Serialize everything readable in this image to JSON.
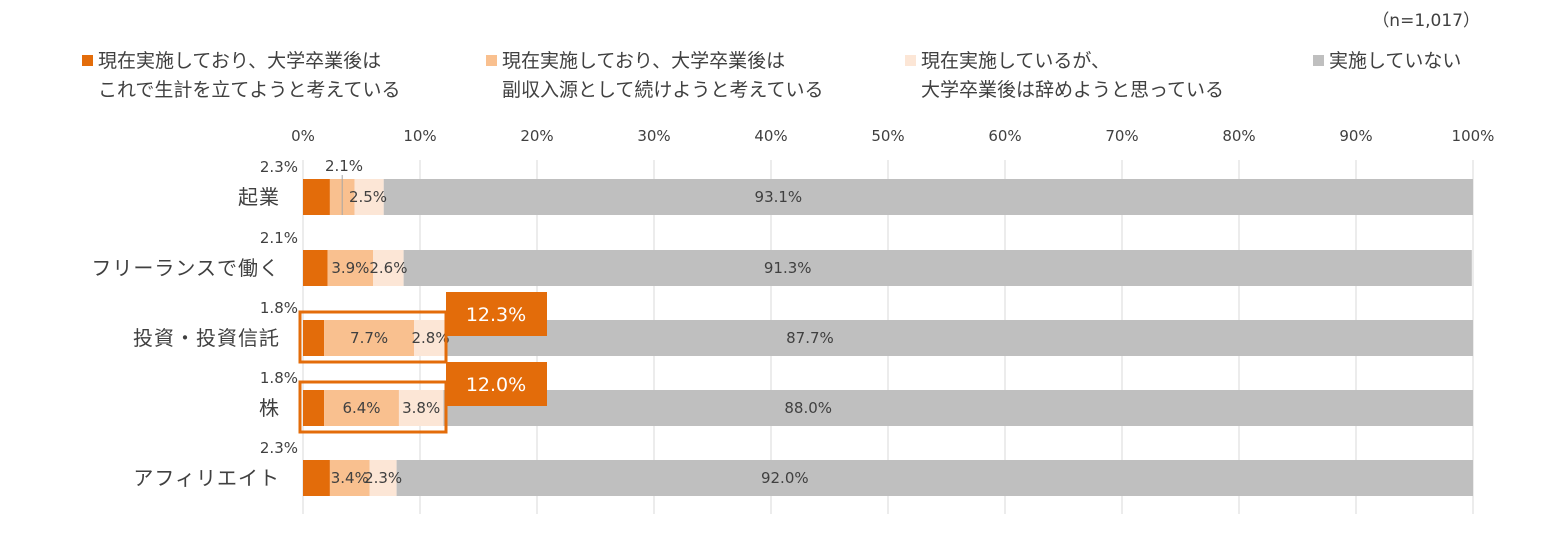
{
  "note": "（n=1,017）",
  "colors": {
    "s1": "#E36C0A",
    "s2": "#F9C08F",
    "s3": "#FCE6D6",
    "s4": "#BFBFBF",
    "grid": "#D9D9D9",
    "highlight": "#E36C0A",
    "text": "#404040"
  },
  "legend": [
    {
      "lines": [
        "現在実施しており、大学卒業後は",
        "これで生計を立てようと考えている"
      ]
    },
    {
      "lines": [
        "現在実施しており、大学卒業後は",
        "副収入源として続けようと考えている"
      ]
    },
    {
      "lines": [
        "現在実施しているが、",
        "大学卒業後は辞めようと思っている"
      ]
    },
    {
      "lines": [
        "実施していない"
      ]
    }
  ],
  "highlights": [
    {
      "category_index": 2,
      "label": "12.3%"
    },
    {
      "category_index": 3,
      "label": "12.0%"
    }
  ],
  "chart_data": {
    "type": "bar",
    "orientation": "horizontal",
    "stacked": "percent",
    "categories": [
      "起業",
      "フリーランスで働く",
      "投資・投資信託",
      "株",
      "アフィリエイト"
    ],
    "series": [
      {
        "name": "現在実施しており、大学卒業後はこれで生計を立てようと考えている",
        "values": [
          2.3,
          2.1,
          1.8,
          1.8,
          2.3
        ],
        "labels": [
          "2.3%",
          "2.1%",
          "1.8%",
          "1.8%",
          "2.3%"
        ]
      },
      {
        "name": "現在実施しており、大学卒業後は副収入源として続けようと考えている",
        "values": [
          2.1,
          3.9,
          7.7,
          6.4,
          3.4
        ],
        "labels": [
          "2.1%",
          "3.9%",
          "7.7%",
          "6.4%",
          "3.4%"
        ]
      },
      {
        "name": "現在実施しているが、大学卒業後は辞めようと思っている",
        "values": [
          2.5,
          2.6,
          2.8,
          3.8,
          2.3
        ],
        "labels": [
          "2.5%",
          "2.6%",
          "2.8%",
          "3.8%",
          "2.3%"
        ]
      },
      {
        "name": "実施していない",
        "values": [
          93.1,
          91.3,
          87.7,
          88.0,
          92.0
        ],
        "labels": [
          "93.1%",
          "91.3%",
          "87.7%",
          "88.0%",
          "92.0%"
        ]
      }
    ],
    "xticks": [
      "0%",
      "10%",
      "20%",
      "30%",
      "40%",
      "50%",
      "60%",
      "70%",
      "80%",
      "90%",
      "100%"
    ],
    "xlim": [
      0,
      100
    ],
    "grid": true,
    "legend_position": "top"
  }
}
